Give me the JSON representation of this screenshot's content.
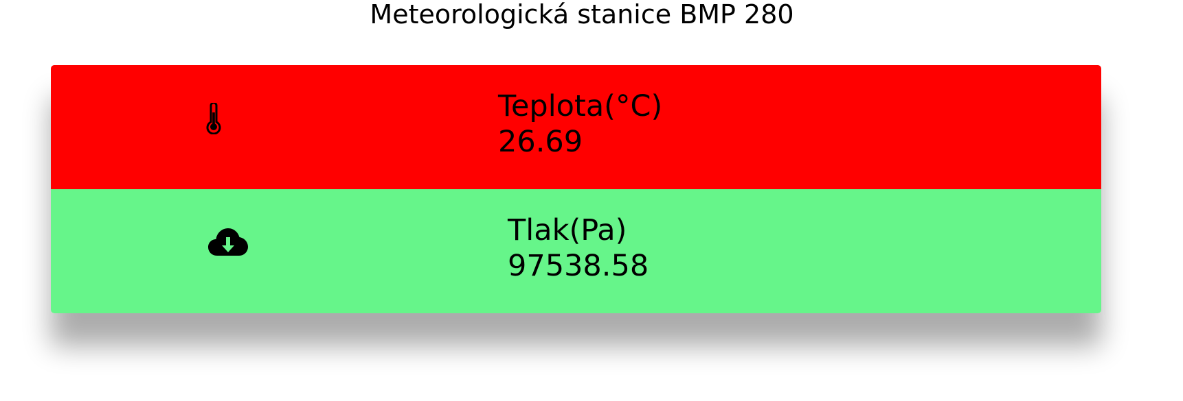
{
  "header": {
    "title": "Meteorologická stanice BMP 280"
  },
  "colors": {
    "temperature_bg": "#ff0000",
    "pressure_bg": "#66f58a"
  },
  "sensors": [
    {
      "icon": "thermometer-icon",
      "label": "Teplota(°C)",
      "value": "26.69"
    },
    {
      "icon": "cloud-download-icon",
      "label": "Tlak(Pa)",
      "value": "97538.58"
    }
  ]
}
